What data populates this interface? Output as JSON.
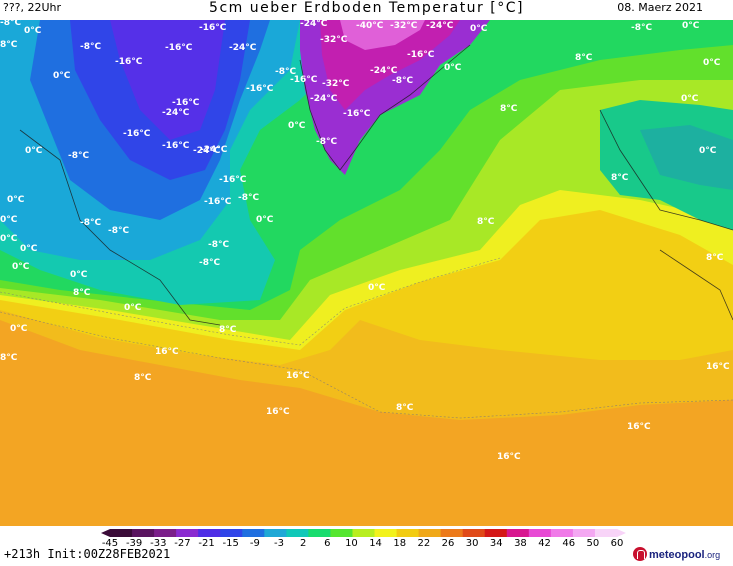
{
  "header": {
    "left": "???, 22Uhr",
    "title": "5cm ueber Erdboden Temperatur [°C]",
    "date": "08. Maerz 2021"
  },
  "footer": {
    "run": "+213h Init:00Z28FEB2021",
    "brand_name": "meteopool",
    "brand_tld": ".org"
  },
  "legend": {
    "ticks": [
      "-45",
      "-39",
      "-33",
      "-27",
      "-21",
      "-15",
      "-9",
      "-3",
      "2",
      "6",
      "10",
      "14",
      "18",
      "22",
      "26",
      "30",
      "34",
      "38",
      "42",
      "46",
      "50",
      "60"
    ],
    "colors": [
      "#3a0b38",
      "#5a1460",
      "#7b1f8a",
      "#8a2bd0",
      "#4f2ee6",
      "#3045e8",
      "#1f6fe0",
      "#1fa8d6",
      "#10c8b8",
      "#18dc6e",
      "#55e630",
      "#b8ee20",
      "#f2f21c",
      "#f2cc12",
      "#f0a818",
      "#ec7a1a",
      "#e04a18",
      "#d41818",
      "#d81890",
      "#e84ad4",
      "#f07ae8",
      "#f4a8f2",
      "#f8d4f8"
    ]
  },
  "map_labels": [
    {
      "id": "t1",
      "text": "0°C"
    },
    {
      "id": "t2",
      "text": "-8°C"
    },
    {
      "id": "t3",
      "text": "-16°C"
    },
    {
      "id": "t4",
      "text": "-16°C"
    },
    {
      "id": "t5",
      "text": "-24°C"
    },
    {
      "id": "t6",
      "text": "-24°C"
    },
    {
      "id": "t7",
      "text": "-40°C"
    },
    {
      "id": "t8",
      "text": "-32°C"
    },
    {
      "id": "t9",
      "text": "-24°C"
    },
    {
      "id": "t10",
      "text": "0°C"
    },
    {
      "id": "t11",
      "text": "-8°C"
    },
    {
      "id": "t12",
      "text": "0°C"
    },
    {
      "id": "t13",
      "text": "-16°C"
    },
    {
      "id": "t14",
      "text": "-32°C"
    },
    {
      "id": "t15",
      "text": "-16°C"
    },
    {
      "id": "t16",
      "text": "0°C"
    },
    {
      "id": "t17",
      "text": "8°C"
    },
    {
      "id": "t18",
      "text": "0°C"
    },
    {
      "id": "t19",
      "text": "-8°C"
    },
    {
      "id": "t20",
      "text": "-16°C"
    },
    {
      "id": "t21",
      "text": "-24°C"
    },
    {
      "id": "t22",
      "text": "-24°C"
    },
    {
      "id": "t23",
      "text": "-16°C"
    },
    {
      "id": "t24",
      "text": "-8°C"
    },
    {
      "id": "t25",
      "text": "0°C"
    },
    {
      "id": "t26",
      "text": "-32°C"
    },
    {
      "id": "t27",
      "text": "-24°C"
    },
    {
      "id": "t28",
      "text": "-16°C"
    },
    {
      "id": "t29",
      "text": "-8°C"
    },
    {
      "id": "t30",
      "text": "0°C"
    },
    {
      "id": "t31",
      "text": "8°C"
    },
    {
      "id": "t32",
      "text": "0°C"
    },
    {
      "id": "t33",
      "text": "-16°C"
    },
    {
      "id": "t34",
      "text": "-24°C"
    },
    {
      "id": "t35",
      "text": "-16°C"
    },
    {
      "id": "t36",
      "text": "0°C"
    },
    {
      "id": "t37",
      "text": "-8°C"
    },
    {
      "id": "t38",
      "text": "-16°C"
    },
    {
      "id": "t39",
      "text": "-16°C"
    },
    {
      "id": "t40",
      "text": "-24°C"
    },
    {
      "id": "t41",
      "text": "0°C"
    },
    {
      "id": "t42",
      "text": "-16°C"
    },
    {
      "id": "t43",
      "text": "-8°C"
    },
    {
      "id": "t44",
      "text": "0°C"
    },
    {
      "id": "t45",
      "text": "8°C"
    },
    {
      "id": "t46",
      "text": "-8°C"
    },
    {
      "id": "t47",
      "text": "-8°C"
    },
    {
      "id": "t48",
      "text": "-8°C"
    },
    {
      "id": "t49",
      "text": "0°C"
    },
    {
      "id": "t50",
      "text": "0°C"
    },
    {
      "id": "t51",
      "text": "-8°C"
    },
    {
      "id": "t52",
      "text": "0°C"
    },
    {
      "id": "t53",
      "text": "8°C"
    },
    {
      "id": "t54",
      "text": "0°C"
    },
    {
      "id": "t55",
      "text": "0°C"
    },
    {
      "id": "t56",
      "text": "8°C"
    },
    {
      "id": "t57",
      "text": "8°C"
    },
    {
      "id": "t58",
      "text": "0°C"
    },
    {
      "id": "t59",
      "text": "8°C"
    },
    {
      "id": "t60",
      "text": "16°C"
    },
    {
      "id": "t61",
      "text": "8°C"
    },
    {
      "id": "t62",
      "text": "16°C"
    },
    {
      "id": "t63",
      "text": "8°C"
    },
    {
      "id": "t64",
      "text": "16°C"
    },
    {
      "id": "t65",
      "text": "16°C"
    },
    {
      "id": "t66",
      "text": "8°C"
    },
    {
      "id": "t67",
      "text": "16°C"
    },
    {
      "id": "t68",
      "text": "16°C"
    },
    {
      "id": "t69",
      "text": "0°C"
    },
    {
      "id": "t70",
      "text": "8°C"
    },
    {
      "id": "t71",
      "text": "-8°C"
    },
    {
      "id": "t72",
      "text": "0°C"
    },
    {
      "id": "t73",
      "text": "0°C"
    }
  ]
}
